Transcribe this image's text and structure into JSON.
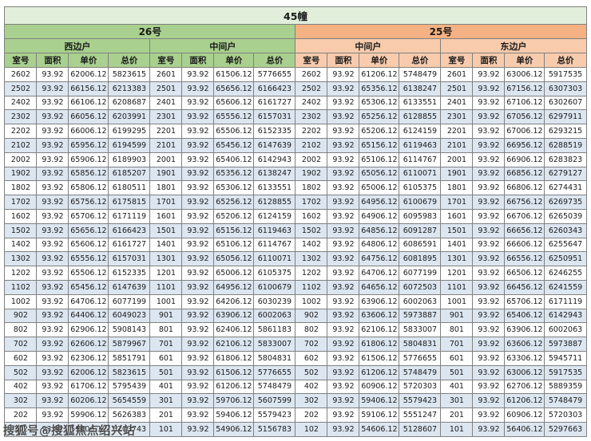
{
  "title": "45幢",
  "watermark": "搜狐号@搜狐焦点绍兴站",
  "buildings": [
    {
      "name": "26号",
      "units": [
        "西边户",
        "中间户"
      ]
    },
    {
      "name": "25号",
      "units": [
        "中间户",
        "东边户"
      ]
    }
  ],
  "column_headers": [
    "室号",
    "面积",
    "单价",
    "总价"
  ],
  "colors": {
    "title_bg": "#e2efda",
    "building26_header": "#a9d08e",
    "building25_header": "#f4b183",
    "building25_subheader": "#f8cbad",
    "row_band": "#dce6f1",
    "border": "#808080"
  },
  "rows": [
    [
      "2602",
      "93.92",
      "62006.12",
      "5823615",
      "2601",
      "93.92",
      "61506.12",
      "5776655",
      "2602",
      "93.92",
      "61206.12",
      "5748479",
      "2601",
      "93.92",
      "63006.12",
      "5917535"
    ],
    [
      "2502",
      "93.92",
      "66156.12",
      "6213383",
      "2501",
      "93.92",
      "65656.12",
      "6166423",
      "2502",
      "93.92",
      "65356.12",
      "6138247",
      "2501",
      "93.92",
      "67156.12",
      "6307303"
    ],
    [
      "2402",
      "93.92",
      "66106.12",
      "6208687",
      "2401",
      "93.92",
      "65606.12",
      "6161727",
      "2402",
      "93.92",
      "65306.12",
      "6133551",
      "2401",
      "93.92",
      "67106.12",
      "6302607"
    ],
    [
      "2302",
      "93.92",
      "66056.12",
      "6203991",
      "2301",
      "93.92",
      "65556.12",
      "6157031",
      "2302",
      "93.92",
      "65256.12",
      "6128855",
      "2301",
      "93.92",
      "67056.12",
      "6297911"
    ],
    [
      "2202",
      "93.92",
      "66006.12",
      "6199295",
      "2201",
      "93.92",
      "65506.12",
      "6152335",
      "2202",
      "93.92",
      "65206.12",
      "6124159",
      "2201",
      "93.92",
      "67006.12",
      "6293215"
    ],
    [
      "2102",
      "93.92",
      "65956.12",
      "6194599",
      "2101",
      "93.92",
      "65456.12",
      "6147639",
      "2102",
      "93.92",
      "65156.12",
      "6119463",
      "2101",
      "93.92",
      "66956.12",
      "6288519"
    ],
    [
      "2002",
      "93.92",
      "65906.12",
      "6189903",
      "2001",
      "93.92",
      "65406.12",
      "6142943",
      "2002",
      "93.92",
      "65106.12",
      "6114767",
      "2001",
      "93.92",
      "66906.12",
      "6283823"
    ],
    [
      "1902",
      "93.92",
      "65856.12",
      "6185207",
      "1901",
      "93.92",
      "65356.12",
      "6138247",
      "1902",
      "93.92",
      "65056.12",
      "6110071",
      "1901",
      "93.92",
      "66856.12",
      "6279127"
    ],
    [
      "1802",
      "93.92",
      "65806.12",
      "6180511",
      "1801",
      "93.92",
      "65306.12",
      "6133551",
      "1802",
      "93.92",
      "65006.12",
      "6105375",
      "1801",
      "93.92",
      "66806.12",
      "6274431"
    ],
    [
      "1702",
      "93.92",
      "65756.12",
      "6175815",
      "1701",
      "93.92",
      "65256.12",
      "6128855",
      "1702",
      "93.92",
      "64956.12",
      "6100679",
      "1701",
      "93.92",
      "66756.12",
      "6269735"
    ],
    [
      "1602",
      "93.92",
      "65706.12",
      "6171119",
      "1601",
      "93.92",
      "65206.12",
      "6124159",
      "1602",
      "93.92",
      "64906.12",
      "6095983",
      "1601",
      "93.92",
      "66706.12",
      "6265039"
    ],
    [
      "1502",
      "93.92",
      "65656.12",
      "6166423",
      "1501",
      "93.92",
      "65156.12",
      "6119463",
      "1502",
      "93.92",
      "64856.12",
      "6091287",
      "1501",
      "93.92",
      "66656.12",
      "6260343"
    ],
    [
      "1402",
      "93.92",
      "65606.12",
      "6161727",
      "1401",
      "93.92",
      "65106.12",
      "6114767",
      "1402",
      "93.92",
      "64806.12",
      "6086591",
      "1401",
      "93.92",
      "66606.12",
      "6255647"
    ],
    [
      "1302",
      "93.92",
      "65556.12",
      "6157031",
      "1301",
      "93.92",
      "65056.12",
      "6110071",
      "1302",
      "93.92",
      "64756.12",
      "6081895",
      "1301",
      "93.92",
      "66556.12",
      "6250951"
    ],
    [
      "1202",
      "93.92",
      "65506.12",
      "6152335",
      "1201",
      "93.92",
      "65006.12",
      "6105375",
      "1202",
      "93.92",
      "64706.12",
      "6077199",
      "1201",
      "93.92",
      "66506.12",
      "6246255"
    ],
    [
      "1102",
      "93.92",
      "65456.12",
      "6147639",
      "1101",
      "93.92",
      "64956.12",
      "6100679",
      "1102",
      "93.92",
      "64656.12",
      "6072503",
      "1101",
      "93.92",
      "66456.12",
      "6241559"
    ],
    [
      "1002",
      "93.92",
      "64706.12",
      "6077199",
      "1001",
      "93.92",
      "64206.12",
      "6030239",
      "1002",
      "93.92",
      "63906.12",
      "6002063",
      "1001",
      "93.92",
      "65706.12",
      "6171119"
    ],
    [
      "902",
      "93.92",
      "64406.12",
      "6049023",
      "901",
      "93.92",
      "63906.12",
      "6002063",
      "902",
      "93.92",
      "63606.12",
      "5973887",
      "901",
      "93.92",
      "65406.12",
      "6142943"
    ],
    [
      "802",
      "93.92",
      "62906.12",
      "5908143",
      "801",
      "93.92",
      "62406.12",
      "5861183",
      "802",
      "93.92",
      "62106.12",
      "5833007",
      "801",
      "93.92",
      "63906.12",
      "6002063"
    ],
    [
      "702",
      "93.92",
      "62606.12",
      "5879967",
      "701",
      "93.92",
      "62106.12",
      "5833007",
      "702",
      "93.92",
      "61806.12",
      "5804831",
      "701",
      "93.92",
      "63606.12",
      "5973887"
    ],
    [
      "602",
      "93.92",
      "62306.12",
      "5851791",
      "601",
      "93.92",
      "61806.12",
      "5804831",
      "602",
      "93.92",
      "61506.12",
      "5776655",
      "601",
      "93.92",
      "63306.12",
      "5945711"
    ],
    [
      "502",
      "93.92",
      "62006.12",
      "5823615",
      "501",
      "93.92",
      "61506.12",
      "5776655",
      "502",
      "93.92",
      "61206.12",
      "5748479",
      "501",
      "93.92",
      "63006.12",
      "5917535"
    ],
    [
      "402",
      "93.92",
      "61706.12",
      "5795439",
      "401",
      "93.92",
      "61206.12",
      "5748479",
      "402",
      "93.92",
      "60906.12",
      "5720303",
      "401",
      "93.92",
      "62706.12",
      "5889359"
    ],
    [
      "302",
      "93.92",
      "60206.12",
      "5654559",
      "301",
      "93.92",
      "59706.12",
      "5607599",
      "302",
      "93.92",
      "59406.12",
      "5579423",
      "301",
      "93.92",
      "61206.12",
      "5748479"
    ],
    [
      "202",
      "93.92",
      "59906.12",
      "5626383",
      "201",
      "93.92",
      "59406.12",
      "5579423",
      "202",
      "93.92",
      "59106.12",
      "5551247",
      "201",
      "93.92",
      "60906.12",
      "5720303"
    ],
    [
      "102",
      "93.92",
      "55406.12",
      "5203743",
      "101",
      "93.92",
      "54906.12",
      "5156783",
      "102",
      "93.92",
      "54606.12",
      "5128607",
      "101",
      "93.92",
      "56406.12",
      "5297663"
    ]
  ]
}
